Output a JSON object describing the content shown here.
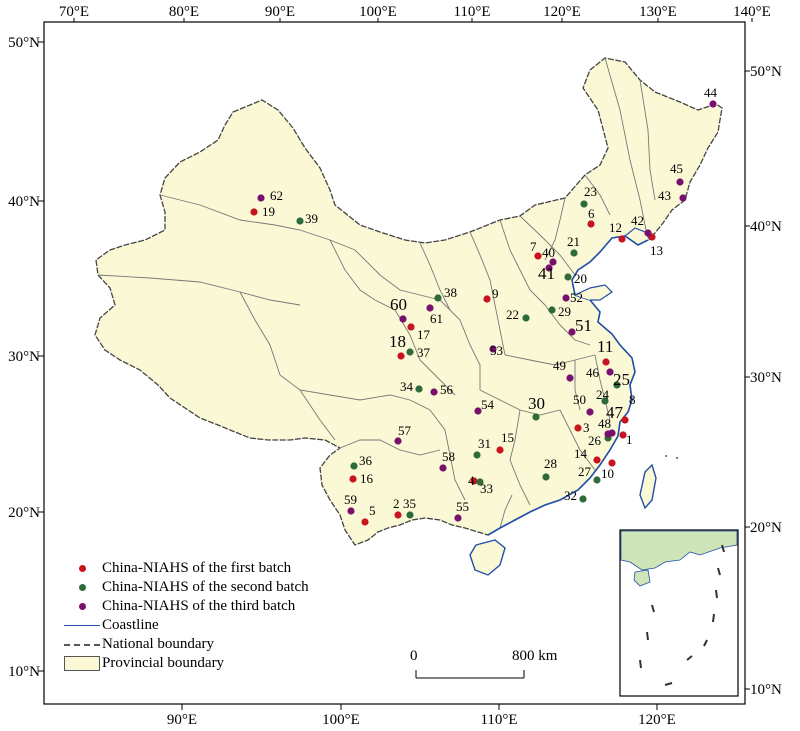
{
  "top_ticks": [
    "70°E",
    "80°E",
    "90°E",
    "100°E",
    "110°E",
    "120°E",
    "130°E",
    "140°E"
  ],
  "bottom_ticks": [
    "90°E",
    "100°E",
    "110°E",
    "120°E"
  ],
  "left_ticks": [
    "50°N",
    "40°N",
    "30°N",
    "20°N",
    "10°N"
  ],
  "right_ticks": [
    "50°N",
    "40°N",
    "30°N",
    "20°N",
    "10°N"
  ],
  "colors": {
    "first": "#c8141e",
    "second": "#2e6b3a",
    "third": "#7a0f6e",
    "coast": "#2150a8",
    "land": "#fbf8d5",
    "inset_land": "#cfe4b9"
  },
  "legend": {
    "first_batch": "China-NIAHS of the first batch",
    "second_batch": "China-NIAHS of the second batch",
    "third_batch": "China-NIAHS of the third batch",
    "coastline": "Coastline",
    "national_boundary": "National boundary",
    "provincial_boundary": "Provincial boundary"
  },
  "scale": {
    "start": "0",
    "end": "800 km"
  },
  "sites": [
    {
      "n": "1",
      "batch": "first"
    },
    {
      "n": "2",
      "batch": "first"
    },
    {
      "n": "3",
      "batch": "first"
    },
    {
      "n": "4",
      "batch": "first"
    },
    {
      "n": "5",
      "batch": "first"
    },
    {
      "n": "6",
      "batch": "first"
    },
    {
      "n": "7",
      "batch": "first"
    },
    {
      "n": "8",
      "batch": "first"
    },
    {
      "n": "9",
      "batch": "first"
    },
    {
      "n": "10",
      "batch": "first"
    },
    {
      "n": "11",
      "batch": "first"
    },
    {
      "n": "12",
      "batch": "first"
    },
    {
      "n": "13",
      "batch": "first"
    },
    {
      "n": "14",
      "batch": "first"
    },
    {
      "n": "15",
      "batch": "first"
    },
    {
      "n": "16",
      "batch": "first"
    },
    {
      "n": "17",
      "batch": "first"
    },
    {
      "n": "18",
      "batch": "first"
    },
    {
      "n": "19",
      "batch": "first"
    },
    {
      "n": "20",
      "batch": "second"
    },
    {
      "n": "21",
      "batch": "second"
    },
    {
      "n": "22",
      "batch": "second"
    },
    {
      "n": "23",
      "batch": "second"
    },
    {
      "n": "24",
      "batch": "second"
    },
    {
      "n": "25",
      "batch": "second"
    },
    {
      "n": "26",
      "batch": "second"
    },
    {
      "n": "27",
      "batch": "second"
    },
    {
      "n": "28",
      "batch": "second"
    },
    {
      "n": "29",
      "batch": "second"
    },
    {
      "n": "30",
      "batch": "second"
    },
    {
      "n": "31",
      "batch": "second"
    },
    {
      "n": "32",
      "batch": "second"
    },
    {
      "n": "33",
      "batch": "second"
    },
    {
      "n": "34",
      "batch": "second"
    },
    {
      "n": "35",
      "batch": "second"
    },
    {
      "n": "36",
      "batch": "second"
    },
    {
      "n": "37",
      "batch": "second"
    },
    {
      "n": "38",
      "batch": "second"
    },
    {
      "n": "39",
      "batch": "second"
    },
    {
      "n": "40",
      "batch": "third"
    },
    {
      "n": "41",
      "batch": "third"
    },
    {
      "n": "42",
      "batch": "third"
    },
    {
      "n": "43",
      "batch": "third"
    },
    {
      "n": "44",
      "batch": "third"
    },
    {
      "n": "45",
      "batch": "third"
    },
    {
      "n": "46",
      "batch": "third"
    },
    {
      "n": "47",
      "batch": "third"
    },
    {
      "n": "48",
      "batch": "third"
    },
    {
      "n": "49",
      "batch": "third"
    },
    {
      "n": "50",
      "batch": "third"
    },
    {
      "n": "51",
      "batch": "third"
    },
    {
      "n": "52",
      "batch": "third"
    },
    {
      "n": "53",
      "batch": "third"
    },
    {
      "n": "54",
      "batch": "third"
    },
    {
      "n": "55",
      "batch": "third"
    },
    {
      "n": "56",
      "batch": "third"
    },
    {
      "n": "57",
      "batch": "third"
    },
    {
      "n": "58",
      "batch": "third"
    },
    {
      "n": "59",
      "batch": "third"
    },
    {
      "n": "60",
      "batch": "third"
    },
    {
      "n": "61",
      "batch": "third"
    },
    {
      "n": "62",
      "batch": "third"
    }
  ]
}
